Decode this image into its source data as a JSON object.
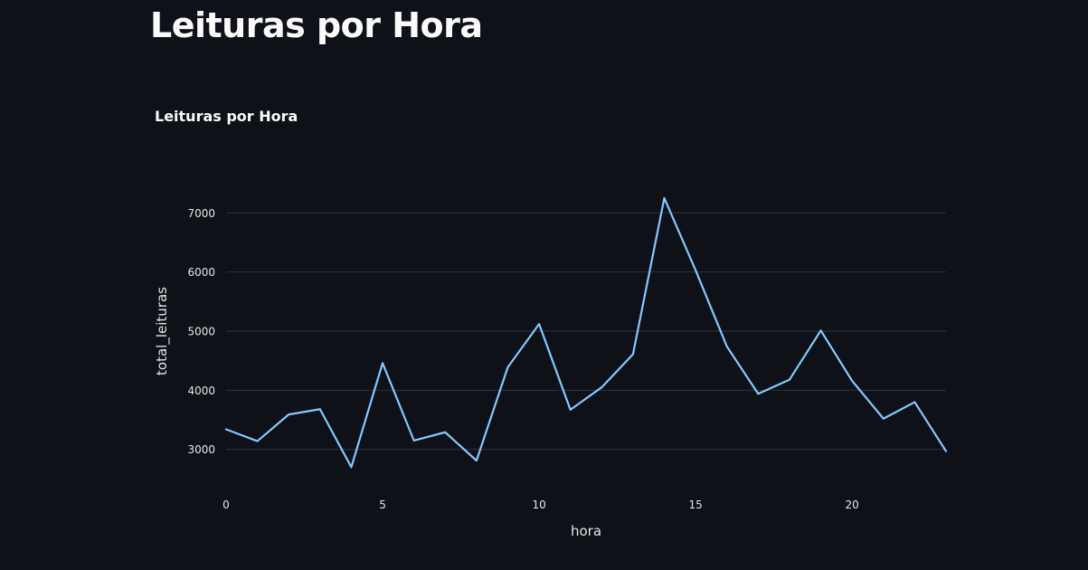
{
  "page": {
    "title": "Leituras por Hora"
  },
  "chart_data": {
    "type": "line",
    "title": "Leituras por Hora",
    "xlabel": "hora",
    "ylabel": "total_leituras",
    "x": [
      0,
      1,
      2,
      3,
      4,
      5,
      6,
      7,
      8,
      9,
      10,
      11,
      12,
      13,
      14,
      15,
      16,
      17,
      18,
      19,
      20,
      21,
      22,
      23
    ],
    "series": [
      {
        "values": [
          3340,
          3140,
          3590,
          3680,
          2700,
          4460,
          3150,
          3290,
          2810,
          4390,
          5120,
          3670,
          4050,
          4610,
          7250,
          6030,
          4740,
          3940,
          4180,
          5010,
          4160,
          3520,
          3800,
          2970
        ]
      }
    ],
    "xlim": [
      0,
      23
    ],
    "ylim": [
      2460,
      7570
    ],
    "xticks": [
      0,
      5,
      10,
      15,
      20
    ],
    "yticks": [
      3000,
      4000,
      5000,
      6000,
      7000
    ],
    "grid": "horizontal",
    "colors": {
      "background": "#0e1117",
      "line": "#83c9ff",
      "grid": "#31333f",
      "text": "#fafafa",
      "tick_text": "#e6e6e6"
    }
  }
}
